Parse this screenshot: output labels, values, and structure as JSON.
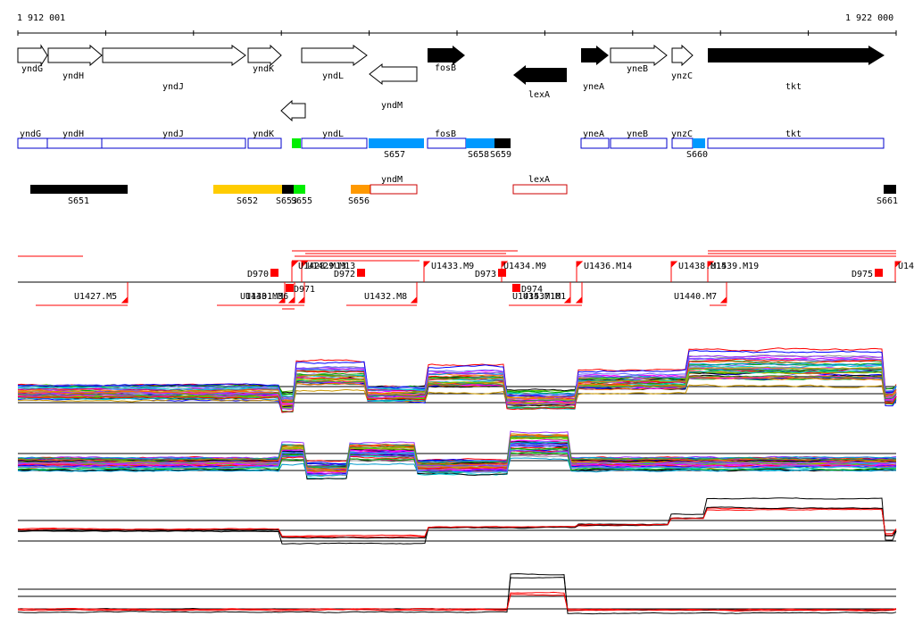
{
  "coords": {
    "start": "1 912 001",
    "end": "1 922 000"
  },
  "genes_top": [
    {
      "name": "yndG",
      "strand": "+",
      "fill": "white"
    },
    {
      "name": "yndH",
      "strand": "+",
      "fill": "white"
    },
    {
      "name": "yndJ",
      "strand": "+",
      "fill": "white"
    },
    {
      "name": "yndK",
      "strand": "+",
      "fill": "white"
    },
    {
      "name": "yndL",
      "strand": "+",
      "fill": "white"
    },
    {
      "name": "yndM",
      "strand": "-",
      "fill": "white"
    },
    {
      "name": "fosB",
      "strand": "+",
      "fill": "black"
    },
    {
      "name": "lexA",
      "strand": "-",
      "fill": "black"
    },
    {
      "name": "yneA",
      "strand": "+",
      "fill": "black"
    },
    {
      "name": "yneB",
      "strand": "+",
      "fill": "white"
    },
    {
      "name": "ynzC",
      "strand": "+",
      "fill": "white"
    },
    {
      "name": "tkt",
      "strand": "+",
      "fill": "black"
    }
  ],
  "genes_row2": [
    "yndG",
    "yndH",
    "yndJ",
    "yndK",
    "yndL",
    "fosB",
    "yneA",
    "yneB",
    "ynzC",
    "tkt"
  ],
  "segments_row2": [
    "S657",
    "S658",
    "S659",
    "S660"
  ],
  "genes_row3": [
    "yndM",
    "lexA"
  ],
  "segments_row3": [
    "S651",
    "S652",
    "S653",
    "S655",
    "S656",
    "S661"
  ],
  "features_top": [
    "D970",
    "U1428.M13",
    "U1429.M13",
    "D972",
    "U1433.M9",
    "D973",
    "U1434.M9",
    "U1436.M14",
    "U1438.M15",
    "U1439.M19",
    "D975",
    "U14"
  ],
  "features_bottom": [
    "U1427.M5",
    "U1430.M3",
    "U1431.M6",
    "D971",
    "U1432.M8",
    "D974",
    "U1435.M10",
    "U1437.M1",
    "U1440.M7"
  ],
  "colors": {
    "segment_blue": "#0099ff",
    "segment_orange": "#ff9900",
    "segment_yellow": "#ffcc00",
    "segment_green": "#00ee00",
    "gene_blue": "#0000cc",
    "gene_red": "#cc0000",
    "marker_red": "#ff0000"
  }
}
